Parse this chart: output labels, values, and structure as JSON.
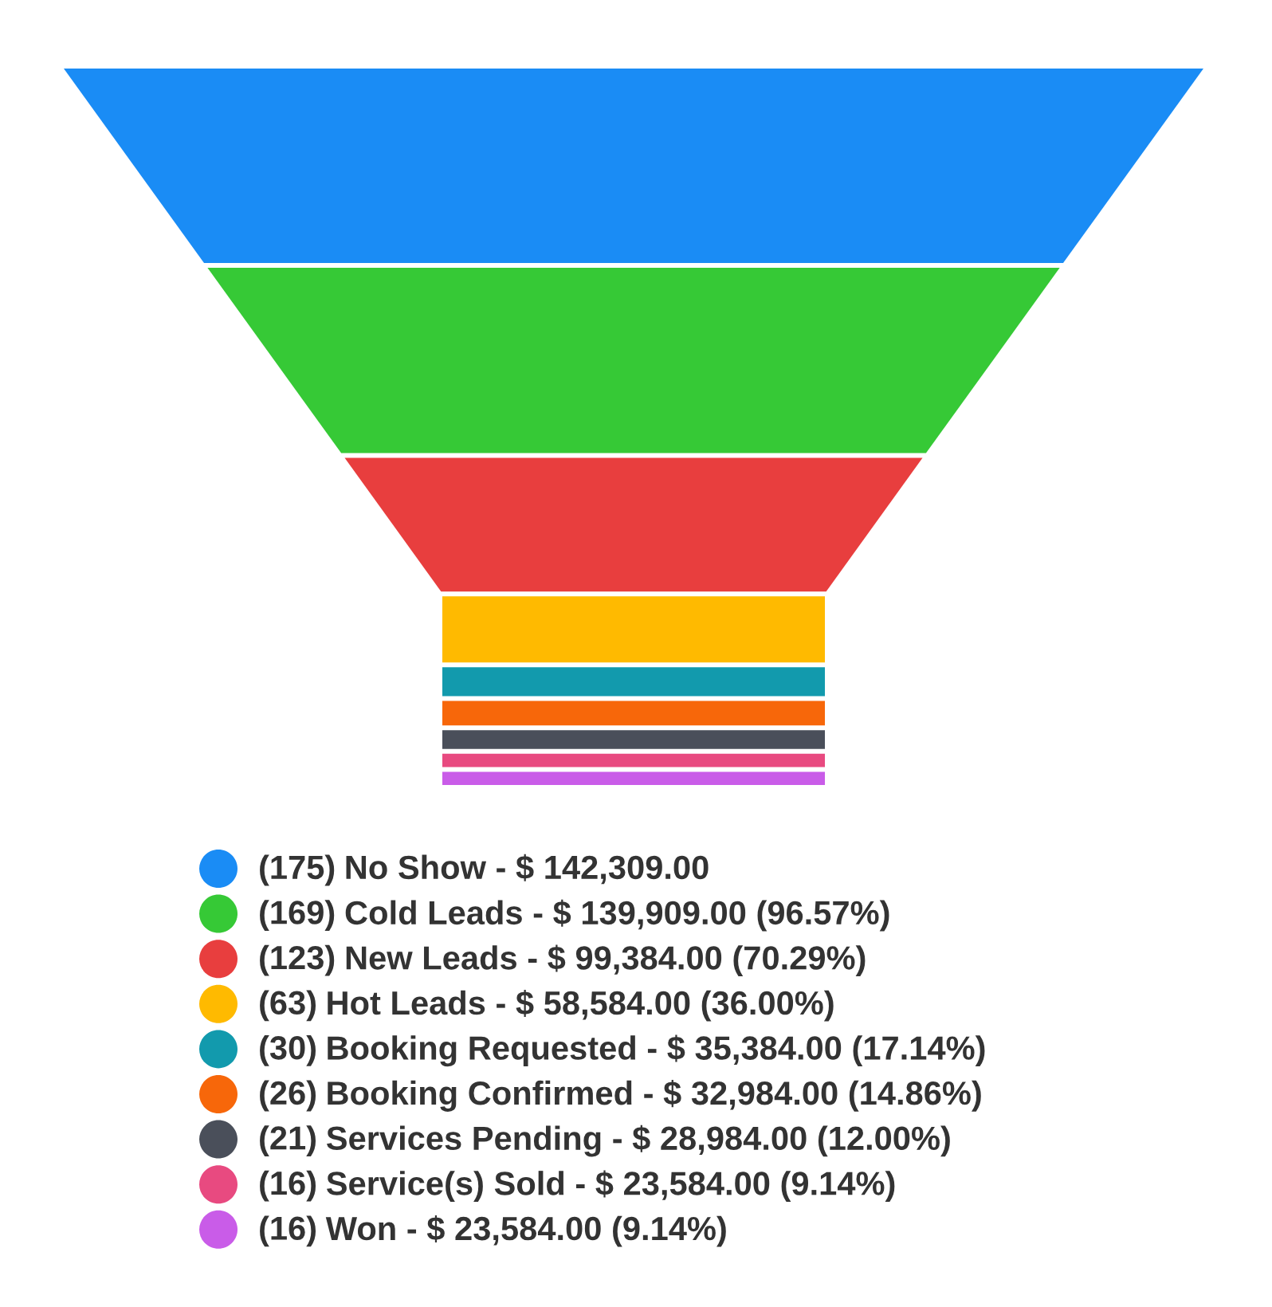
{
  "chart_data": {
    "type": "other",
    "categories": [
      "No Show - $ 142,309.00",
      "Cold Leads - $ 139,909.00 (96.57%)",
      "New Leads - $ 99,384.00 (70.29%)",
      "Hot Leads - $ 58,584.00 (36.00%)",
      "Booking Requested - $ 35,384.00 (17.14%)",
      "Booking Confirmed - $ 32,984.00 (14.86%)",
      "Services Pending - $ 28,984.00 (12.00%)",
      "Service(s) Sold - $ 23,584.00 (9.14%)",
      "Won - $ 23,584.00 (9.14%)"
    ],
    "value_labels": [
      "(175)",
      "(169)",
      "(123)",
      "(63)",
      "(30)",
      "(26)",
      "(21)",
      "(16)",
      "(16)"
    ],
    "values": [
      175,
      169,
      123,
      63,
      30,
      26,
      21,
      16,
      16
    ],
    "colors": [
      "#1a8cf5",
      "#36c936",
      "#e83e3e",
      "#ffba00",
      "#129aad",
      "#f7670a",
      "#4a4f5a",
      "#e84a80",
      "#c95ce8"
    ]
  }
}
